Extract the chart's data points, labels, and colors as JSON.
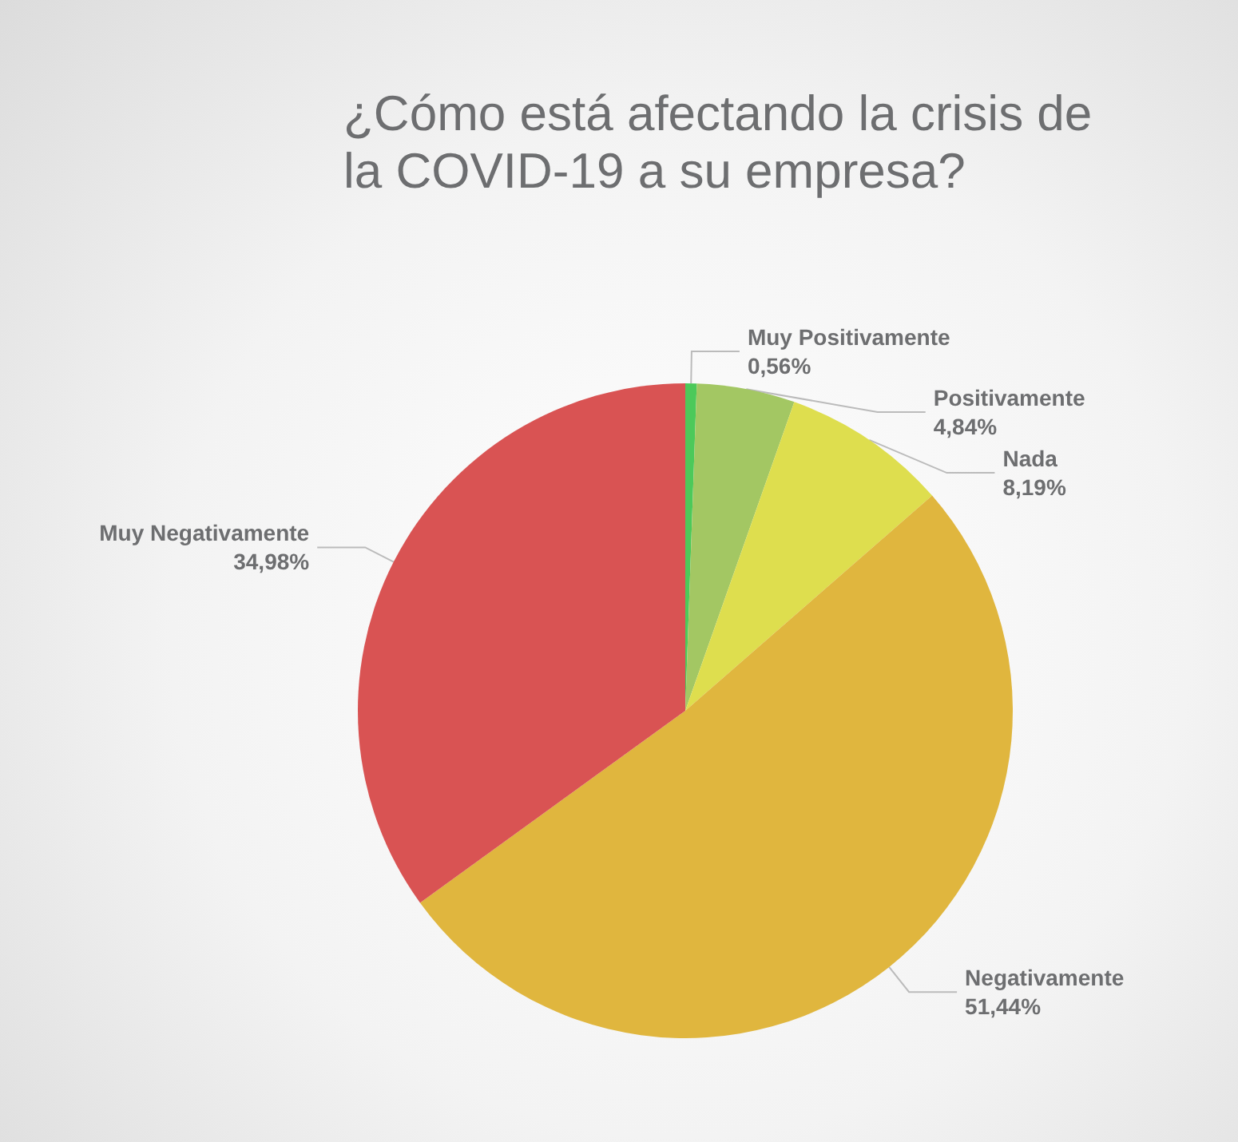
{
  "chart_data": {
    "type": "pie",
    "title": "¿Cómo está afectando la crisis de la COVID-19 a su empresa?",
    "categories": [
      "Muy Positivamente",
      "Positivamente",
      "Nada",
      "Negativamente",
      "Muy Negativamente"
    ],
    "values": [
      0.56,
      4.84,
      8.19,
      51.44,
      34.98
    ],
    "colors": [
      "#4cc95a",
      "#a3c763",
      "#dede4e",
      "#e0b63e",
      "#d95353"
    ],
    "value_labels": [
      "0,56%",
      "4,84%",
      "8,19%",
      "51,44%",
      "34,98%"
    ],
    "legend": false
  }
}
